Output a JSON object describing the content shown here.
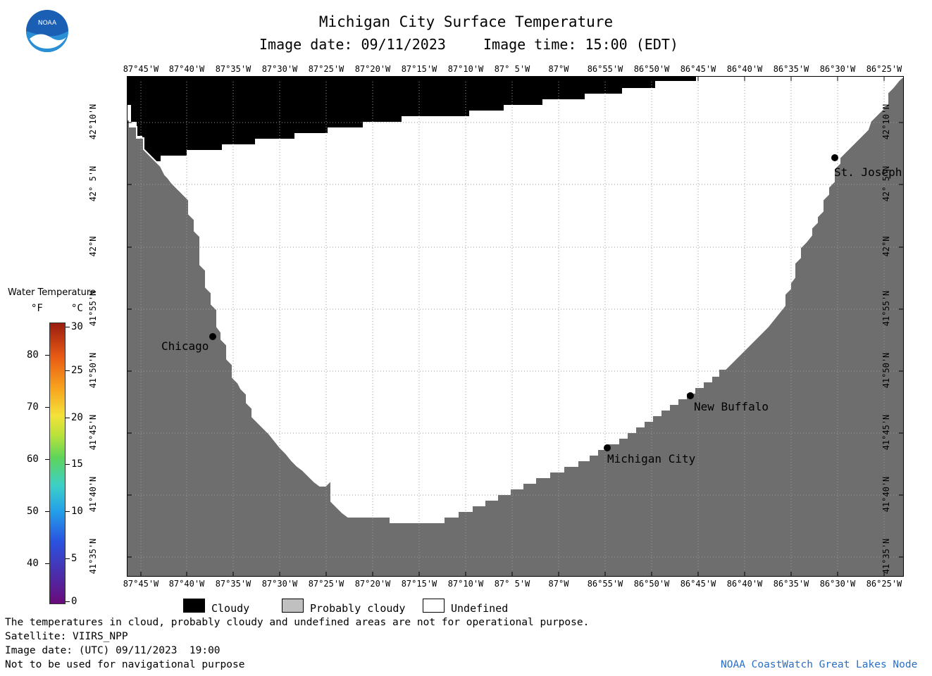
{
  "header": {
    "title": "Michigan City Surface Temperature",
    "image_date": "Image date: 09/11/2023",
    "image_time": "Image time: 15:00 (EDT)"
  },
  "logo": {
    "text": "NOAA"
  },
  "map": {
    "lon_labels": [
      "87°45'W",
      "87°40'W",
      "87°35'W",
      "87°30'W",
      "87°25'W",
      "87°20'W",
      "87°15'W",
      "87°10'W",
      "87° 5'W",
      "87°W",
      "86°55'W",
      "86°50'W",
      "86°45'W",
      "86°40'W",
      "86°35'W",
      "86°30'W",
      "86°25'W"
    ],
    "lat_labels": [
      "42°10'N",
      "42° 5'N",
      "42°N",
      "41°55'N",
      "41°50'N",
      "41°45'N",
      "41°40'N",
      "41°35'N"
    ],
    "places": [
      {
        "name": "Chicago"
      },
      {
        "name": "St. Joseph"
      },
      {
        "name": "New Buffalo"
      },
      {
        "name": "Michigan City"
      }
    ],
    "colors": {
      "land": "#6e6e6e",
      "cloud": "#000000",
      "undefined": "#ffffff",
      "grid": "#9a9a9a"
    }
  },
  "legend": {
    "title": "Water Temperature",
    "unit_f": "°F",
    "unit_c": "°C",
    "f_ticks": [
      "80",
      "70",
      "60",
      "50",
      "40"
    ],
    "c_ticks": [
      "30",
      "25",
      "20",
      "15",
      "10",
      "5",
      "0"
    ]
  },
  "key": {
    "cloudy": "Cloudy",
    "probably_cloudy": "Probably cloudy",
    "undefined": "Undefined"
  },
  "footer": {
    "note": "The temperatures in cloud, probably cloudy and undefined areas are not for operational purpose.",
    "satellite": "Satellite: VIIRS_NPP",
    "utc_date": "Image date: (UTC) 09/11/2023  19:00",
    "nav_warning": "Not to be used for navigational purpose",
    "credit": "NOAA CoastWatch Great Lakes Node"
  }
}
